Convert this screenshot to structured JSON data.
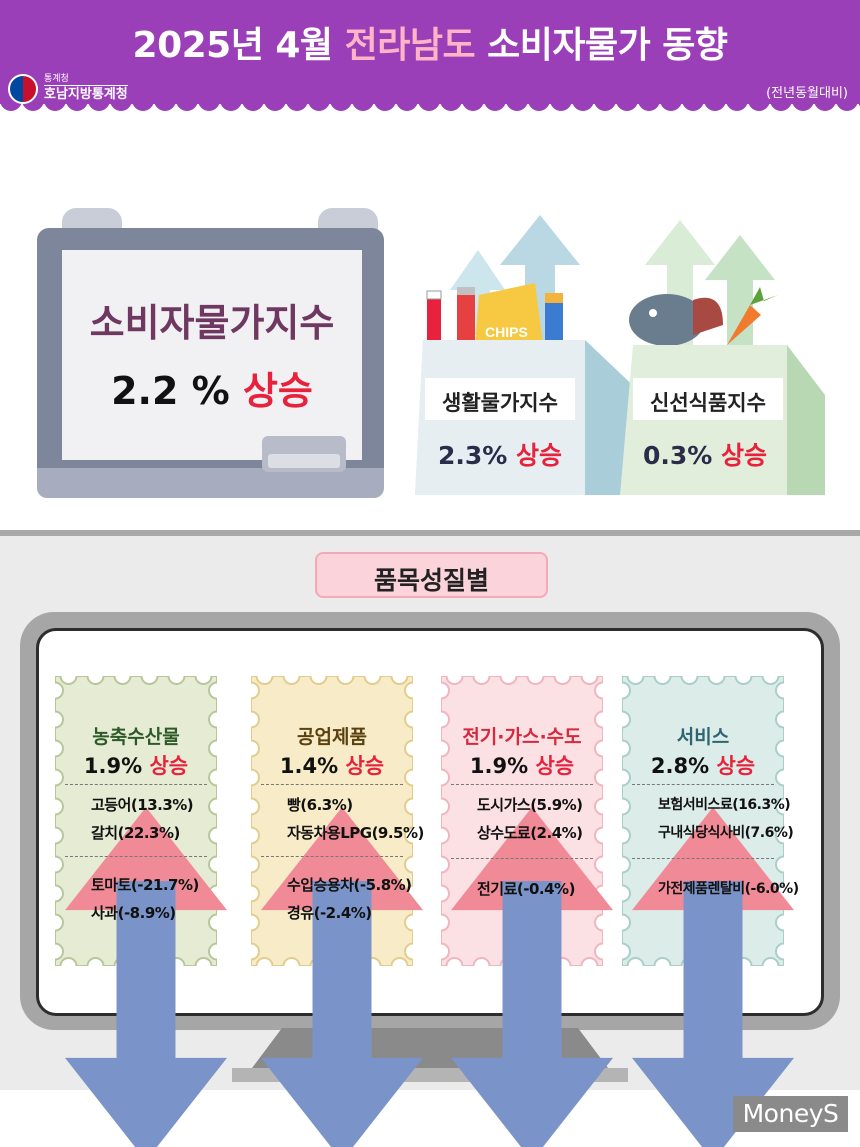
{
  "header": {
    "title_prefix": "2025년 4월 ",
    "title_highlight": "전라남도",
    "title_suffix": " 소비자물가 동향",
    "subnote": "(전년동월대비)",
    "logo_small": "통계청",
    "logo_big": "호남지방통계청",
    "logo_icon": "taegeuk-icon"
  },
  "colors": {
    "header_purple": "#9b3fb8",
    "title_highlight": "#ffb3c6",
    "rise_red": "#e8223c",
    "up_arrow": "#f08a96",
    "down_arrow": "#7a93c8"
  },
  "board": {
    "title": "소비자물가지수",
    "value": "2.2 % ",
    "trend": "상승"
  },
  "bags": [
    {
      "label": "생활물가지수",
      "value": "2.3% ",
      "trend": "상승",
      "icon": "household-goods-icon"
    },
    {
      "label": "신선식품지수",
      "value": "0.3% ",
      "trend": "상승",
      "icon": "fresh-food-icon"
    }
  ],
  "chips_text": "CHIPS",
  "section_label": "품목성질별",
  "categories": [
    {
      "name": "농축수산물",
      "value": "1.9% ",
      "trend": "상승",
      "title_color": "#2e5a2a",
      "up_items": [
        "고등어(13.3%)",
        "갈치(22.3%)"
      ],
      "down_items": [
        "토마토(-21.7%)",
        "사과(-8.9%)"
      ]
    },
    {
      "name": "공업제품",
      "value": "1.4% ",
      "trend": "상승",
      "title_color": "#5a4210",
      "up_items": [
        "빵(6.3%)",
        "자동차용LPG(9.5%)"
      ],
      "down_items": [
        "수입승용차(-5.8%)",
        "경유(-2.4%)"
      ]
    },
    {
      "name": "전기·가스·수도",
      "value": "1.9% ",
      "trend": "상승",
      "title_color": "#d8283d",
      "up_items": [
        "도시가스(5.9%)",
        "상수도료(2.4%)"
      ],
      "down_items": [
        "전기료(-0.4%)"
      ]
    },
    {
      "name": "서비스",
      "value": "2.8% ",
      "trend": "상승",
      "title_color": "#2f6470",
      "up_items": [
        "보험서비스료(16.3%)",
        "구내식당식사비(7.6%)"
      ],
      "down_items": [
        "가전제품렌탈비(-6.0%)"
      ]
    }
  ],
  "watermark": "MoneyS"
}
